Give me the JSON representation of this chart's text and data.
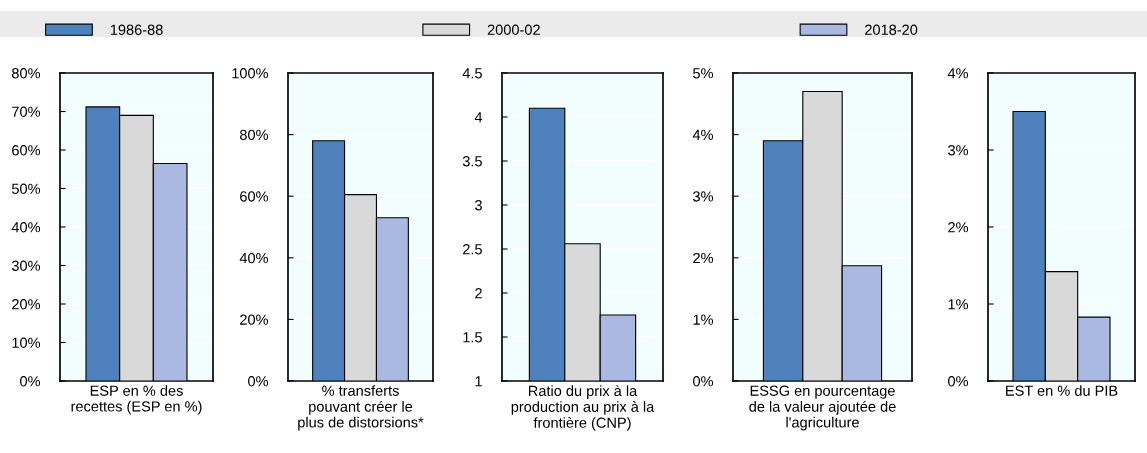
{
  "chart_data": [
    {
      "type": "bar",
      "categories": [
        "ESP en % des\nrecettes (ESP en %)"
      ],
      "legend": "top",
      "series": [
        {
          "name": "1986-88",
          "color": "#4f81bd",
          "values": [
            71.2
          ]
        },
        {
          "name": "2000-02",
          "color": "#d9d9d9",
          "values": [
            69
          ]
        },
        {
          "name": "2018-20",
          "color": "#a9b9e1",
          "values": [
            56.5
          ]
        }
      ],
      "ylim": [
        0,
        80
      ],
      "yticks": [
        {
          "value": 0,
          "label": "0%"
        },
        {
          "value": 10,
          "label": "10%"
        },
        {
          "value": 20,
          "label": "20%"
        },
        {
          "value": 30,
          "label": "30%"
        },
        {
          "value": 40,
          "label": "40%"
        },
        {
          "value": 50,
          "label": "50%"
        },
        {
          "value": 60,
          "label": "60%"
        },
        {
          "value": 70,
          "label": "70%"
        },
        {
          "value": 80,
          "label": "80%"
        }
      ],
      "grid": "y"
    },
    {
      "type": "bar",
      "categories": [
        "% transferts\npouvant créer le\nplus de distorsions*"
      ],
      "series": [
        {
          "color": "#4f81bd",
          "values": [
            78
          ]
        },
        {
          "color": "#d9d9d9",
          "values": [
            60.5
          ]
        },
        {
          "color": "#a9b9e1",
          "values": [
            53
          ]
        }
      ],
      "ylim": [
        0,
        100
      ],
      "yticks": [
        {
          "value": 0,
          "label": "0%"
        },
        {
          "value": 20,
          "label": "20%"
        },
        {
          "value": 40,
          "label": "40%"
        },
        {
          "value": 60,
          "label": "60%"
        },
        {
          "value": 80,
          "label": "80%"
        },
        {
          "value": 100,
          "label": "100%"
        }
      ],
      "grid": "y"
    },
    {
      "type": "bar",
      "categories": [
        "Ratio du prix à la\nproduction au prix à la\nfrontière (CNP)"
      ],
      "series": [
        {
          "color": "#4f81bd",
          "values": [
            4.1
          ]
        },
        {
          "color": "#d9d9d9",
          "values": [
            2.56
          ]
        },
        {
          "color": "#a9b9e1",
          "values": [
            1.75
          ]
        }
      ],
      "ylim": [
        1,
        4.5
      ],
      "yticks": [
        1,
        1.5,
        2,
        2.5,
        3,
        3.5,
        4,
        4.5
      ],
      "grid": "y"
    },
    {
      "type": "bar",
      "categories": [
        "ESSG en pourcentage\nde la valeur ajoutée de\nl'agriculture"
      ],
      "series": [
        {
          "color": "#4f81bd",
          "values": [
            3.9
          ]
        },
        {
          "color": "#d9d9d9",
          "values": [
            4.7
          ]
        },
        {
          "color": "#a9b9e1",
          "values": [
            1.87
          ]
        }
      ],
      "ylim": [
        0,
        5
      ],
      "yticks": [
        {
          "value": 0,
          "label": "0%"
        },
        {
          "value": 1,
          "label": "1%"
        },
        {
          "value": 2,
          "label": "2%"
        },
        {
          "value": 3,
          "label": "3%"
        },
        {
          "value": 4,
          "label": "4%"
        },
        {
          "value": 5,
          "label": "5%"
        }
      ],
      "grid": "y"
    },
    {
      "type": "bar",
      "categories": [
        "EST en % du PIB"
      ],
      "series": [
        {
          "color": "#4f81bd",
          "values": [
            3.5
          ]
        },
        {
          "color": "#d9d9d9",
          "values": [
            1.42
          ]
        },
        {
          "color": "#a9b9e1",
          "values": [
            0.83
          ]
        }
      ],
      "ylim": [
        0,
        4
      ],
      "yticks": [
        {
          "value": 0,
          "label": "0%"
        },
        {
          "value": 1,
          "label": "1%"
        },
        {
          "value": 2,
          "label": "2%"
        },
        {
          "value": 3,
          "label": "3%"
        },
        {
          "value": 4,
          "label": "4%"
        }
      ],
      "grid": "y"
    }
  ]
}
